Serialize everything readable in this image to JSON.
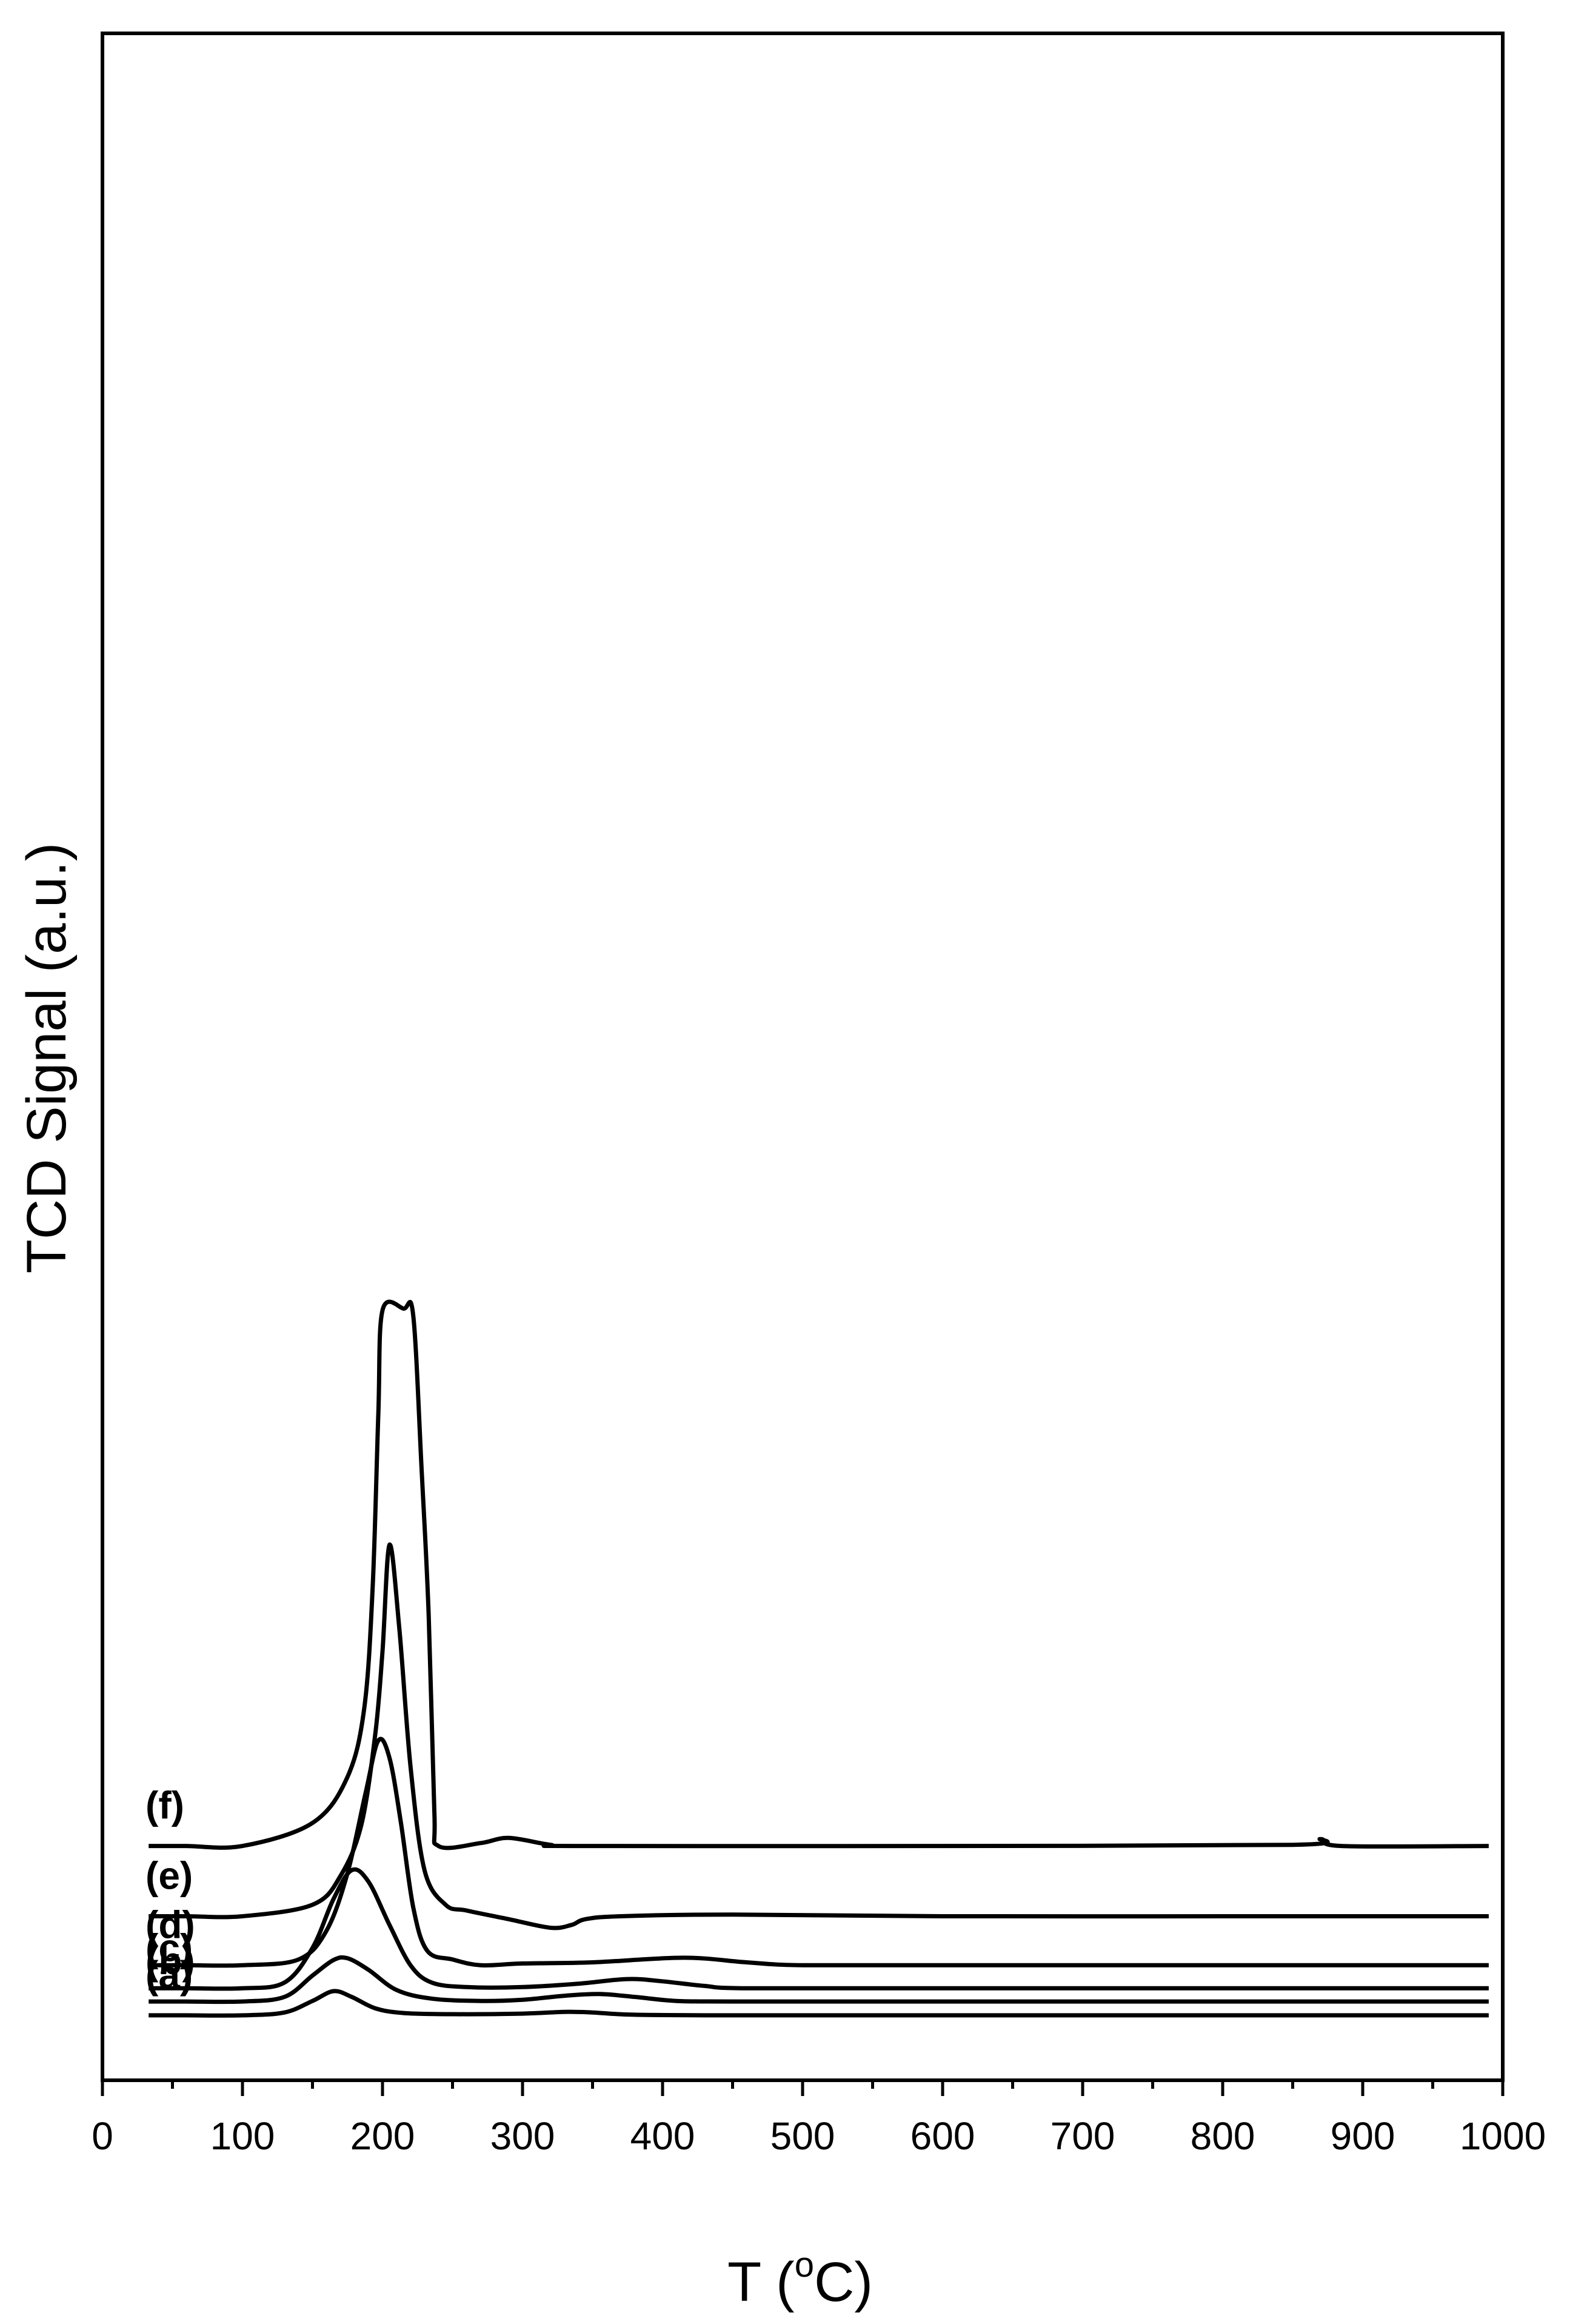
{
  "chart_data": {
    "type": "line",
    "title": "",
    "xlabel": "T (",
    "xlabel_sup": "o",
    "xlabel_tail": "C)",
    "ylabel": "TCD Signal (a.u.)",
    "xlim": [
      0,
      1000
    ],
    "x_ticks": [
      "0",
      "100",
      "200",
      "300",
      "400",
      "500",
      "600",
      "700",
      "800",
      "900",
      "1000"
    ],
    "grid": false,
    "y_ticks": false,
    "series": [
      {
        "label": "(a)",
        "offset": 0.38,
        "points": [
          [
            33,
            0.0
          ],
          [
            60,
            0.0
          ],
          [
            100,
            0.0
          ],
          [
            130,
            0.05
          ],
          [
            150,
            0.25
          ],
          [
            165,
            0.42
          ],
          [
            178,
            0.32
          ],
          [
            195,
            0.12
          ],
          [
            215,
            0.04
          ],
          [
            250,
            0.02
          ],
          [
            300,
            0.03
          ],
          [
            330,
            0.06
          ],
          [
            350,
            0.05
          ],
          [
            380,
            0.01
          ],
          [
            450,
            0.0
          ],
          [
            600,
            0.0
          ],
          [
            800,
            0.0
          ],
          [
            990,
            0.0
          ]
        ]
      },
      {
        "label": "(b)",
        "offset": 0.62,
        "points": [
          [
            33,
            0.0
          ],
          [
            60,
            0.0
          ],
          [
            100,
            0.0
          ],
          [
            130,
            0.08
          ],
          [
            150,
            0.45
          ],
          [
            165,
            0.72
          ],
          [
            175,
            0.75
          ],
          [
            190,
            0.55
          ],
          [
            210,
            0.2
          ],
          [
            235,
            0.05
          ],
          [
            270,
            0.01
          ],
          [
            300,
            0.03
          ],
          [
            330,
            0.1
          ],
          [
            355,
            0.13
          ],
          [
            380,
            0.08
          ],
          [
            410,
            0.01
          ],
          [
            450,
            0.0
          ],
          [
            600,
            0.0
          ],
          [
            800,
            0.0
          ],
          [
            990,
            0.0
          ]
        ]
      },
      {
        "label": "(c)",
        "offset": 0.85,
        "points": [
          [
            33,
            0.0
          ],
          [
            60,
            0.0
          ],
          [
            100,
            0.0
          ],
          [
            130,
            0.1
          ],
          [
            150,
            0.7
          ],
          [
            165,
            1.55
          ],
          [
            178,
            2.05
          ],
          [
            190,
            1.85
          ],
          [
            205,
            1.1
          ],
          [
            220,
            0.4
          ],
          [
            235,
            0.1
          ],
          [
            260,
            0.02
          ],
          [
            300,
            0.02
          ],
          [
            340,
            0.08
          ],
          [
            375,
            0.16
          ],
          [
            400,
            0.12
          ],
          [
            430,
            0.04
          ],
          [
            460,
            0.0
          ],
          [
            600,
            0.0
          ],
          [
            800,
            0.0
          ],
          [
            990,
            0.0
          ]
        ]
      },
      {
        "label": "(d)",
        "offset": 1.25,
        "points": [
          [
            33,
            0.0
          ],
          [
            60,
            0.0
          ],
          [
            100,
            0.0
          ],
          [
            140,
            0.1
          ],
          [
            160,
            0.6
          ],
          [
            175,
            1.6
          ],
          [
            188,
            3.0
          ],
          [
            197,
            3.9
          ],
          [
            205,
            3.6
          ],
          [
            213,
            2.5
          ],
          [
            222,
            1.0
          ],
          [
            232,
            0.25
          ],
          [
            250,
            0.1
          ],
          [
            270,
            0.0
          ],
          [
            300,
            0.03
          ],
          [
            350,
            0.05
          ],
          [
            415,
            0.13
          ],
          [
            460,
            0.05
          ],
          [
            500,
            0.0
          ],
          [
            600,
            0.0
          ],
          [
            800,
            0.0
          ],
          [
            990,
            0.0
          ]
        ]
      },
      {
        "label": "(e)",
        "offset": 2.1,
        "points": [
          [
            33,
            0.0
          ],
          [
            60,
            0.0
          ],
          [
            100,
            0.0
          ],
          [
            150,
            0.2
          ],
          [
            170,
            0.7
          ],
          [
            185,
            1.6
          ],
          [
            195,
            3.2
          ],
          [
            200,
            4.6
          ],
          [
            205,
            6.45
          ],
          [
            212,
            5.0
          ],
          [
            220,
            2.6
          ],
          [
            230,
            0.8
          ],
          [
            245,
            0.2
          ],
          [
            260,
            0.1
          ],
          [
            290,
            -0.05
          ],
          [
            320,
            -0.2
          ],
          [
            335,
            -0.15
          ],
          [
            345,
            -0.05
          ],
          [
            370,
            0.0
          ],
          [
            450,
            0.03
          ],
          [
            600,
            0.0
          ],
          [
            800,
            0.0
          ],
          [
            990,
            0.0
          ]
        ]
      },
      {
        "label": "(f)",
        "offset": 3.32,
        "points": [
          [
            33,
            0.0
          ],
          [
            60,
            0.0
          ],
          [
            100,
            0.0
          ],
          [
            150,
            0.4
          ],
          [
            175,
            1.2
          ],
          [
            187,
            2.4
          ],
          [
            193,
            4.5
          ],
          [
            197,
            7.5
          ],
          [
            200,
            9.3
          ],
          [
            215,
            9.33
          ],
          [
            222,
            9.2
          ],
          [
            228,
            6.5
          ],
          [
            233,
            4.0
          ],
          [
            237,
            0.6
          ],
          [
            240,
            0.0
          ],
          [
            270,
            0.05
          ],
          [
            290,
            0.14
          ],
          [
            320,
            0.02
          ],
          [
            340,
            0.0
          ],
          [
            600,
            0.0
          ],
          [
            850,
            0.02
          ],
          [
            870,
            0.12
          ],
          [
            885,
            0.0
          ],
          [
            990,
            0.0
          ]
        ]
      }
    ]
  }
}
